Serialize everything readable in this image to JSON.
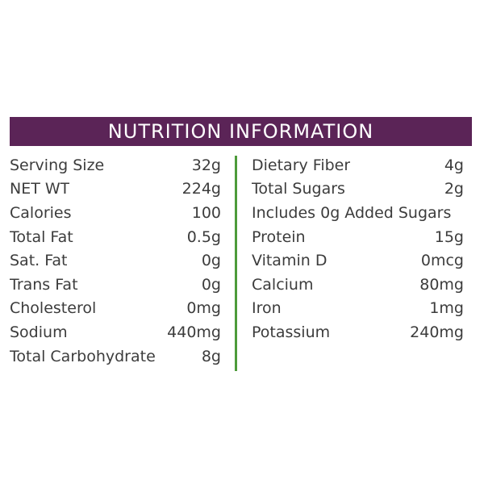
{
  "title": "NUTRITION INFORMATION",
  "colors": {
    "header_bg": "#5b2457",
    "header_text": "#ffffff",
    "divider": "#4d9b3a",
    "text": "#3c3c3c"
  },
  "left_column": [
    {
      "label": "Serving Size",
      "value": "32g"
    },
    {
      "label": "NET WT",
      "value": "224g"
    },
    {
      "label": "Calories",
      "value": "100"
    },
    {
      "label": "Total Fat",
      "value": "0.5g"
    },
    {
      "label": "Sat. Fat",
      "value": "0g"
    },
    {
      "label": "Trans Fat",
      "value": "0g"
    },
    {
      "label": "Cholesterol",
      "value": "0mg"
    },
    {
      "label": "Sodium",
      "value": "440mg"
    },
    {
      "label": "Total Carbohydrate",
      "value": "8g"
    }
  ],
  "right_column": [
    {
      "label": "Dietary Fiber",
      "value": "4g"
    },
    {
      "label": "Total Sugars",
      "value": "2g"
    },
    {
      "label": "Includes 0g Added Sugars",
      "value": ""
    },
    {
      "label": "Protein",
      "value": "15g"
    },
    {
      "label": "Vitamin D",
      "value": "0mcg"
    },
    {
      "label": "Calcium",
      "value": "80mg"
    },
    {
      "label": "Iron",
      "value": "1mg"
    },
    {
      "label": "Potassium",
      "value": "240mg"
    }
  ]
}
